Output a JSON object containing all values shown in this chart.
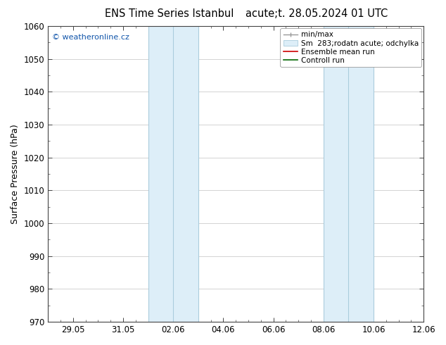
{
  "title_left": "ENS Time Series Istanbul",
  "title_right": "acute;t. 28.05.2024 01 UTC",
  "ylabel": "Surface Pressure (hPa)",
  "ylim": [
    970,
    1060
  ],
  "yticks": [
    970,
    980,
    990,
    1000,
    1010,
    1020,
    1030,
    1040,
    1050,
    1060
  ],
  "xlim": [
    0,
    15
  ],
  "xtick_labels": [
    "29.05",
    "31.05",
    "02.06",
    "04.06",
    "06.06",
    "08.06",
    "10.06",
    "12.06"
  ],
  "xtick_positions_days": [
    1,
    3,
    5,
    7,
    9,
    11,
    13,
    15
  ],
  "shade_bands": [
    {
      "x_start": 4.0,
      "x_mid": 5.0,
      "x_end": 6.0
    },
    {
      "x_start": 11.0,
      "x_mid": 12.0,
      "x_end": 13.0
    }
  ],
  "shade_color": "#ddeef8",
  "shade_border_color": "#aaccdd",
  "watermark": "© weatheronline.cz",
  "bg_color": "#ffffff",
  "plot_bg_color": "#ffffff",
  "title_fontsize": 10.5,
  "tick_fontsize": 8.5,
  "ylabel_fontsize": 9,
  "legend_fontsize": 7.5,
  "minor_tick_color": "#444444",
  "grid_color": "#cccccc"
}
